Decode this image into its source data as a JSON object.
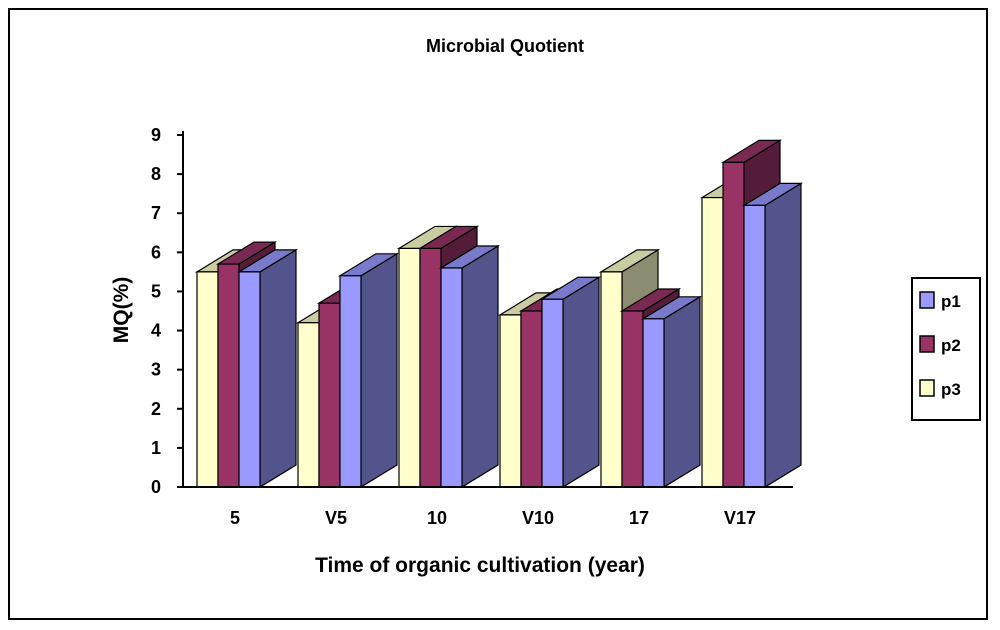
{
  "chart_data": {
    "type": "bar",
    "title": "Microbial Quotient",
    "xlabel": "Time of organic cultivation (year)",
    "ylabel": "MQ(%)",
    "categories": [
      "5",
      "V5",
      "10",
      "V10",
      "17",
      "V17"
    ],
    "series": [
      {
        "name": "p3",
        "color": "#ffffcc",
        "values": [
          5.5,
          4.2,
          6.1,
          4.4,
          5.5,
          7.4
        ]
      },
      {
        "name": "p2",
        "color": "#993366",
        "values": [
          5.7,
          4.7,
          6.1,
          4.5,
          4.5,
          8.3
        ]
      },
      {
        "name": "p1",
        "color": "#9999ff",
        "values": [
          5.5,
          5.4,
          5.6,
          4.8,
          4.3,
          7.2
        ]
      }
    ],
    "ylim": [
      0,
      9
    ],
    "yticks": [
      0,
      1,
      2,
      3,
      4,
      5,
      6,
      7,
      8,
      9
    ],
    "legend": {
      "position": "right",
      "order": [
        "p1",
        "p2",
        "p3"
      ]
    },
    "grid": false,
    "style": "3d-clustered-column"
  }
}
